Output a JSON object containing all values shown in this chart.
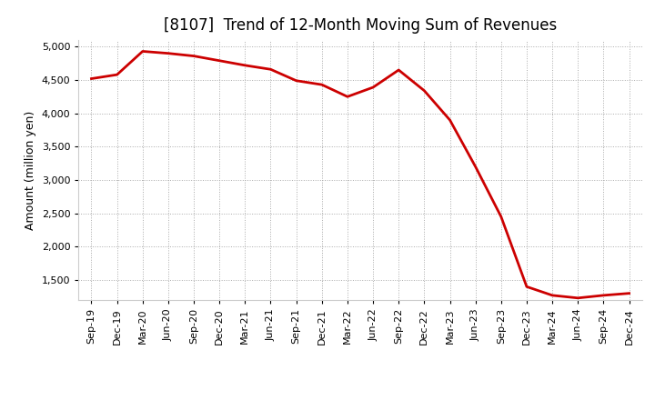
{
  "title": "[8107]  Trend of 12-Month Moving Sum of Revenues",
  "ylabel": "Amount (million yen)",
  "x_labels": [
    "Sep-19",
    "Dec-19",
    "Mar-20",
    "Jun-20",
    "Sep-20",
    "Dec-20",
    "Mar-21",
    "Jun-21",
    "Sep-21",
    "Dec-21",
    "Mar-22",
    "Jun-22",
    "Sep-22",
    "Dec-22",
    "Mar-23",
    "Jun-23",
    "Sep-23",
    "Dec-23",
    "Mar-24",
    "Jun-24",
    "Sep-24",
    "Dec-24"
  ],
  "values": [
    4520,
    4580,
    4930,
    4900,
    4860,
    4790,
    4720,
    4660,
    4490,
    4430,
    4250,
    4390,
    4650,
    4340,
    3900,
    3200,
    2450,
    1400,
    1270,
    1230,
    1270,
    1300
  ],
  "line_color": "#cc0000",
  "line_width": 2.0,
  "ylim_min": 1200,
  "ylim_max": 5100,
  "yticks": [
    1500,
    2000,
    2500,
    3000,
    3500,
    4000,
    4500,
    5000
  ],
  "background_color": "#ffffff",
  "grid_color": "#aaaaaa",
  "title_fontsize": 12,
  "label_fontsize": 9,
  "tick_fontsize": 8
}
